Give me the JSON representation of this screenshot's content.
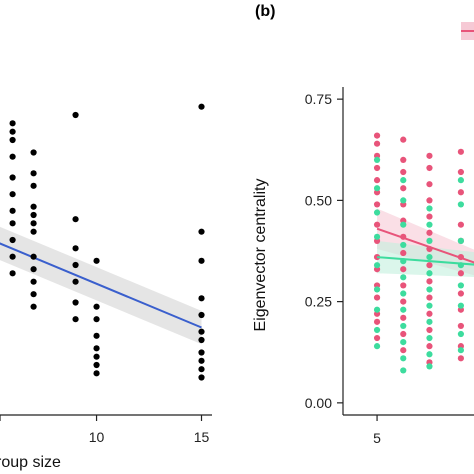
{
  "chart_data": [
    {
      "panel_label": "",
      "type": "scatter",
      "xlabel": "roup size",
      "ylabel": "",
      "xticks": [
        10,
        15
      ],
      "xlim": [
        5.4,
        15.5
      ],
      "ylim": [
        0.0,
        0.78
      ],
      "point_color": "#000000",
      "fit_color": "#3a5fcd",
      "band_color": "#d3d3d3",
      "fit": {
        "x": [
          5,
          15
        ],
        "y": [
          0.42,
          0.21
        ],
        "band_lo": [
          0.38,
          0.17
        ],
        "band_hi": [
          0.46,
          0.25
        ]
      },
      "points": [
        {
          "x": 6,
          "y": 0.7
        },
        {
          "x": 6,
          "y": 0.68
        },
        {
          "x": 6,
          "y": 0.66
        },
        {
          "x": 6,
          "y": 0.62
        },
        {
          "x": 6,
          "y": 0.57
        },
        {
          "x": 6,
          "y": 0.53
        },
        {
          "x": 6,
          "y": 0.49
        },
        {
          "x": 6,
          "y": 0.46
        },
        {
          "x": 6,
          "y": 0.42
        },
        {
          "x": 6,
          "y": 0.38
        },
        {
          "x": 6,
          "y": 0.34
        },
        {
          "x": 7,
          "y": 0.63
        },
        {
          "x": 7,
          "y": 0.58
        },
        {
          "x": 7,
          "y": 0.55
        },
        {
          "x": 7,
          "y": 0.5
        },
        {
          "x": 7,
          "y": 0.48
        },
        {
          "x": 7,
          "y": 0.46
        },
        {
          "x": 7,
          "y": 0.44
        },
        {
          "x": 7,
          "y": 0.38
        },
        {
          "x": 7,
          "y": 0.35
        },
        {
          "x": 7,
          "y": 0.32
        },
        {
          "x": 7,
          "y": 0.29
        },
        {
          "x": 7,
          "y": 0.26
        },
        {
          "x": 9,
          "y": 0.72
        },
        {
          "x": 9,
          "y": 0.47
        },
        {
          "x": 9,
          "y": 0.4
        },
        {
          "x": 9,
          "y": 0.36
        },
        {
          "x": 9,
          "y": 0.32
        },
        {
          "x": 9,
          "y": 0.27
        },
        {
          "x": 9,
          "y": 0.23
        },
        {
          "x": 10,
          "y": 0.37
        },
        {
          "x": 10,
          "y": 0.26
        },
        {
          "x": 10,
          "y": 0.23
        },
        {
          "x": 10,
          "y": 0.19
        },
        {
          "x": 10,
          "y": 0.16
        },
        {
          "x": 10,
          "y": 0.14
        },
        {
          "x": 10,
          "y": 0.12
        },
        {
          "x": 10,
          "y": 0.1
        },
        {
          "x": 15,
          "y": 0.74
        },
        {
          "x": 15,
          "y": 0.44
        },
        {
          "x": 15,
          "y": 0.37
        },
        {
          "x": 15,
          "y": 0.28
        },
        {
          "x": 15,
          "y": 0.24
        },
        {
          "x": 15,
          "y": 0.2
        },
        {
          "x": 15,
          "y": 0.18
        },
        {
          "x": 15,
          "y": 0.15
        },
        {
          "x": 15,
          "y": 0.13
        },
        {
          "x": 15,
          "y": 0.11
        },
        {
          "x": 15,
          "y": 0.09
        }
      ]
    },
    {
      "panel_label": "(b)",
      "type": "scatter",
      "xlabel": "",
      "ylabel": "Eigenvector centrality",
      "xticks": [
        5
      ],
      "yticks": [
        0.0,
        0.25,
        0.5,
        0.75
      ],
      "ytick_labels": [
        "0.00",
        "0.25",
        "0.50",
        "0.75"
      ],
      "xlim": [
        4.35,
        6.85
      ],
      "ylim": [
        -0.03,
        0.78
      ],
      "series": [
        {
          "color": "#e8547a",
          "band_color": "#f6c9d5",
          "fit": {
            "x": [
              5,
              7
            ],
            "y": [
              0.43,
              0.34
            ],
            "band_lo": [
              0.38,
              0.31
            ],
            "band_hi": [
              0.48,
              0.37
            ]
          },
          "points": [
            {
              "x": 5,
              "y": 0.66
            },
            {
              "x": 5,
              "y": 0.64
            },
            {
              "x": 5,
              "y": 0.61
            },
            {
              "x": 5,
              "y": 0.58
            },
            {
              "x": 5,
              "y": 0.55
            },
            {
              "x": 5,
              "y": 0.52
            },
            {
              "x": 5,
              "y": 0.49
            },
            {
              "x": 5,
              "y": 0.44
            },
            {
              "x": 5,
              "y": 0.4
            },
            {
              "x": 5,
              "y": 0.36
            },
            {
              "x": 5,
              "y": 0.33
            },
            {
              "x": 5,
              "y": 0.29
            },
            {
              "x": 5,
              "y": 0.26
            },
            {
              "x": 5,
              "y": 0.22
            },
            {
              "x": 5,
              "y": 0.2
            },
            {
              "x": 5,
              "y": 0.16
            },
            {
              "x": 5.5,
              "y": 0.65
            },
            {
              "x": 5.5,
              "y": 0.6
            },
            {
              "x": 5.5,
              "y": 0.57
            },
            {
              "x": 5.5,
              "y": 0.53
            },
            {
              "x": 5.5,
              "y": 0.49
            },
            {
              "x": 5.5,
              "y": 0.45
            },
            {
              "x": 5.5,
              "y": 0.41
            },
            {
              "x": 5.5,
              "y": 0.37
            },
            {
              "x": 5.5,
              "y": 0.33
            },
            {
              "x": 5.5,
              "y": 0.29
            },
            {
              "x": 5.5,
              "y": 0.25
            },
            {
              "x": 5.5,
              "y": 0.21
            },
            {
              "x": 5.5,
              "y": 0.17
            },
            {
              "x": 5.5,
              "y": 0.13
            },
            {
              "x": 6.0,
              "y": 0.61
            },
            {
              "x": 6.0,
              "y": 0.58
            },
            {
              "x": 6.0,
              "y": 0.54
            },
            {
              "x": 6.0,
              "y": 0.5
            },
            {
              "x": 6.0,
              "y": 0.46
            },
            {
              "x": 6.0,
              "y": 0.42
            },
            {
              "x": 6.0,
              "y": 0.38
            },
            {
              "x": 6.0,
              "y": 0.34
            },
            {
              "x": 6.0,
              "y": 0.3
            },
            {
              "x": 6.0,
              "y": 0.26
            },
            {
              "x": 6.0,
              "y": 0.22
            },
            {
              "x": 6.0,
              "y": 0.18
            },
            {
              "x": 6.0,
              "y": 0.14
            },
            {
              "x": 6.0,
              "y": 0.1
            },
            {
              "x": 6.6,
              "y": 0.62
            },
            {
              "x": 6.6,
              "y": 0.57
            },
            {
              "x": 6.6,
              "y": 0.52
            },
            {
              "x": 6.6,
              "y": 0.44
            },
            {
              "x": 6.6,
              "y": 0.4
            },
            {
              "x": 6.6,
              "y": 0.36
            },
            {
              "x": 6.6,
              "y": 0.32
            },
            {
              "x": 6.6,
              "y": 0.27
            },
            {
              "x": 6.6,
              "y": 0.23
            },
            {
              "x": 6.6,
              "y": 0.19
            },
            {
              "x": 6.6,
              "y": 0.14
            },
            {
              "x": 6.6,
              "y": 0.11
            }
          ]
        },
        {
          "color": "#3ddc9e",
          "band_color": "#c3f0dd",
          "fit": {
            "x": [
              5,
              7
            ],
            "y": [
              0.36,
              0.34
            ],
            "band_lo": [
              0.32,
              0.31
            ],
            "band_hi": [
              0.4,
              0.37
            ]
          },
          "points": [
            {
              "x": 5,
              "y": 0.6
            },
            {
              "x": 5,
              "y": 0.53
            },
            {
              "x": 5,
              "y": 0.47
            },
            {
              "x": 5,
              "y": 0.41
            },
            {
              "x": 5,
              "y": 0.34
            },
            {
              "x": 5,
              "y": 0.28
            },
            {
              "x": 5,
              "y": 0.23
            },
            {
              "x": 5,
              "y": 0.18
            },
            {
              "x": 5,
              "y": 0.14
            },
            {
              "x": 5.5,
              "y": 0.55
            },
            {
              "x": 5.5,
              "y": 0.5
            },
            {
              "x": 5.5,
              "y": 0.44
            },
            {
              "x": 5.5,
              "y": 0.39
            },
            {
              "x": 5.5,
              "y": 0.35
            },
            {
              "x": 5.5,
              "y": 0.31
            },
            {
              "x": 5.5,
              "y": 0.27
            },
            {
              "x": 5.5,
              "y": 0.23
            },
            {
              "x": 5.5,
              "y": 0.19
            },
            {
              "x": 5.5,
              "y": 0.15
            },
            {
              "x": 5.5,
              "y": 0.11
            },
            {
              "x": 5.5,
              "y": 0.08
            },
            {
              "x": 6.0,
              "y": 0.48
            },
            {
              "x": 6.0,
              "y": 0.44
            },
            {
              "x": 6.0,
              "y": 0.4
            },
            {
              "x": 6.0,
              "y": 0.36
            },
            {
              "x": 6.0,
              "y": 0.32
            },
            {
              "x": 6.0,
              "y": 0.28
            },
            {
              "x": 6.0,
              "y": 0.24
            },
            {
              "x": 6.0,
              "y": 0.2
            },
            {
              "x": 6.0,
              "y": 0.16
            },
            {
              "x": 6.0,
              "y": 0.12
            },
            {
              "x": 6.0,
              "y": 0.09
            },
            {
              "x": 6.6,
              "y": 0.55
            },
            {
              "x": 6.6,
              "y": 0.49
            },
            {
              "x": 6.6,
              "y": 0.4
            },
            {
              "x": 6.6,
              "y": 0.34
            },
            {
              "x": 6.6,
              "y": 0.29
            },
            {
              "x": 6.6,
              "y": 0.24
            },
            {
              "x": 6.6,
              "y": 0.17
            },
            {
              "x": 6.6,
              "y": 0.13
            }
          ]
        }
      ]
    }
  ]
}
